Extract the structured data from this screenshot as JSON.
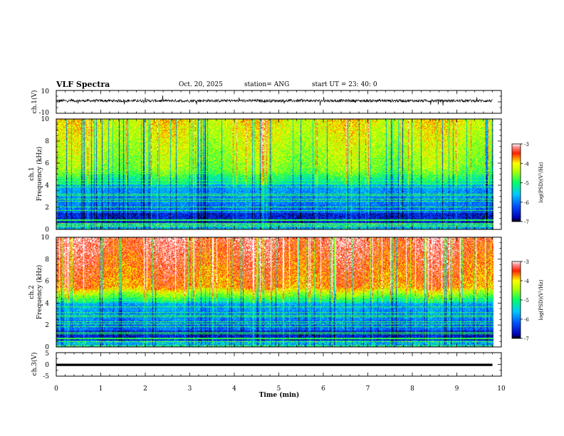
{
  "header": {
    "title": "VLF Spectra",
    "date": "Oct. 20, 2025",
    "station": "station= ANG",
    "start": "start  UT =   23: 40: 0"
  },
  "chart_data": [
    {
      "id": "ch1-waveform",
      "type": "line",
      "ylabel": "ch.1(V)",
      "ylim": [
        -10,
        10
      ],
      "yticks": [
        10,
        -10
      ],
      "x_range_min": [
        0,
        9.8
      ],
      "baseline": 1,
      "noise_amplitude": 1.2
    },
    {
      "id": "ch1-spectrogram",
      "type": "heatmap",
      "ylabel_line1": "ch.1",
      "ylabel_line2": "Frequency (kHz)",
      "ylim": [
        0,
        10
      ],
      "yticks": [
        0,
        2,
        4,
        6,
        8,
        10
      ],
      "x_range_min": [
        0,
        9.8
      ],
      "z_range_log": [
        -7,
        -3
      ]
    },
    {
      "id": "ch2-spectrogram",
      "type": "heatmap",
      "ylabel_line1": "ch.2",
      "ylabel_line2": "Frequency (kHz)",
      "ylim": [
        0,
        10
      ],
      "yticks": [
        0,
        2,
        4,
        6,
        8,
        10
      ],
      "x_range_min": [
        0,
        9.8
      ],
      "z_range_log": [
        -7,
        -3
      ]
    },
    {
      "id": "ch3-waveform",
      "type": "line",
      "ylabel": "ch.3(V)",
      "ylim": [
        -5,
        5
      ],
      "yticks": [
        5,
        0,
        -5
      ],
      "x_range_min": [
        0,
        9.8
      ],
      "baseline": -0.2
    }
  ],
  "x_axis": {
    "label": "Time  (min)",
    "range": [
      0,
      10
    ],
    "ticks": [
      "0",
      "1",
      "2",
      "3",
      "4",
      "5",
      "6",
      "7",
      "8",
      "9",
      "10"
    ]
  },
  "colorbars": [
    {
      "id": "colorbar-ch1",
      "label": "log(PSD)(V²/Hz)",
      "ticks": [
        "-3",
        "-4",
        "-5",
        "-6",
        "-7"
      ]
    },
    {
      "id": "colorbar-ch2",
      "label": "log(PSD)(V²/Hz)",
      "ticks": [
        "-3",
        "-4",
        "-5",
        "-6",
        "-7"
      ]
    }
  ],
  "colors": {
    "axis": "#000000",
    "background": "#ffffff"
  }
}
